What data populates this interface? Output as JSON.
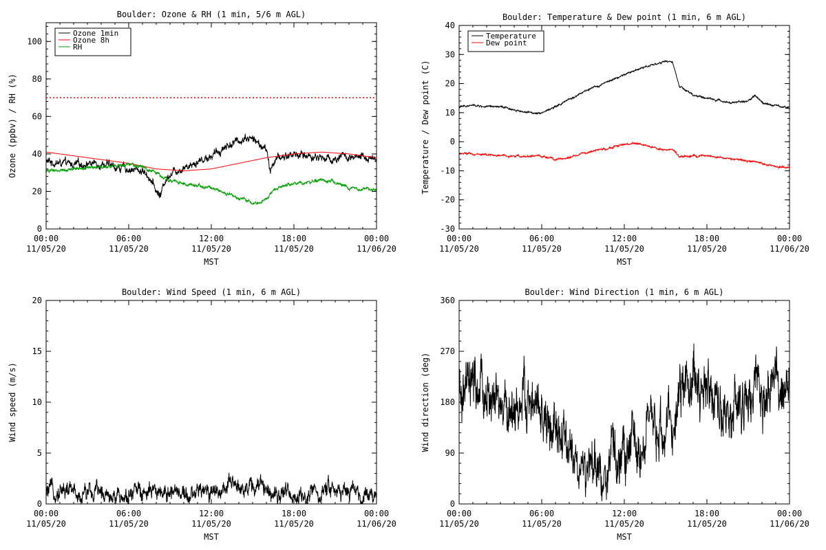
{
  "chart_data": [
    {
      "type": "line",
      "title": "Boulder: Ozone & RH (1 min, 5/6 m AGL)",
      "xlabel": "MST",
      "ylabel": "Ozone (ppbv) / RH (%)",
      "ylim": [
        0,
        110
      ],
      "yticks": [
        0,
        20,
        40,
        60,
        80,
        100
      ],
      "xlim_hours": [
        0,
        24
      ],
      "xticks": [
        {
          "h": 0,
          "time": "00:00",
          "date": "11/05/20"
        },
        {
          "h": 6,
          "time": "06:00",
          "date": "11/05/20"
        },
        {
          "h": 12,
          "time": "12:00",
          "date": "11/05/20"
        },
        {
          "h": 18,
          "time": "18:00",
          "date": "11/05/20"
        },
        {
          "h": 24,
          "time": "00:00",
          "date": "11/06/20"
        }
      ],
      "legend_position": "top-left",
      "reference_lines": [
        {
          "y": 70,
          "color": "#ff0000",
          "style": "dotted"
        }
      ],
      "series": [
        {
          "name": "Ozone 1min",
          "color": "#000000",
          "noise": 2.0,
          "x": [
            0,
            1,
            2,
            3,
            4,
            5,
            6,
            7,
            7.5,
            8,
            8.3,
            8.6,
            9,
            10,
            11,
            12,
            12.5,
            13,
            14,
            14.5,
            15,
            15.5,
            16,
            16.3,
            16.5,
            17,
            18,
            19,
            20,
            21,
            21.5,
            22,
            23,
            24
          ],
          "y": [
            36,
            35,
            34,
            35,
            35,
            33,
            32,
            31,
            28,
            20,
            18,
            25,
            30,
            33,
            36,
            39,
            41,
            44,
            47,
            49,
            48,
            45,
            42,
            30,
            36,
            38,
            40,
            39,
            38,
            37,
            40,
            37,
            38,
            38
          ]
        },
        {
          "name": "Ozone 8h",
          "color": "#ff0000",
          "noise": 0,
          "x": [
            0,
            2,
            4,
            6,
            8,
            10,
            12,
            14,
            16,
            18,
            20,
            22,
            24
          ],
          "y": [
            41,
            39,
            37,
            35,
            32,
            31,
            32,
            35,
            38,
            40,
            41,
            40,
            38
          ]
        },
        {
          "name": "RH",
          "color": "#00a000",
          "noise": 0.8,
          "x": [
            0,
            2,
            4,
            6,
            7,
            8,
            9,
            10,
            11,
            12,
            13,
            14,
            15,
            15.5,
            16,
            16.5,
            17,
            18,
            19,
            20,
            21,
            22,
            23,
            24
          ],
          "y": [
            31,
            32,
            33,
            34,
            33,
            30,
            26,
            24,
            23,
            22,
            19,
            16,
            14,
            14,
            16,
            20,
            23,
            24,
            25,
            26,
            25,
            22,
            21,
            21
          ]
        }
      ]
    },
    {
      "type": "line",
      "title": "Boulder: Temperature & Dew point (1 min, 6 m AGL)",
      "xlabel": "MST",
      "ylabel": "Temperature / Dew point (C)",
      "ylim": [
        -30,
        40
      ],
      "yticks": [
        -30,
        -20,
        -10,
        0,
        10,
        20,
        30,
        40
      ],
      "xlim_hours": [
        0,
        24
      ],
      "xticks": [
        {
          "h": 0,
          "time": "00:00",
          "date": "11/05/20"
        },
        {
          "h": 6,
          "time": "06:00",
          "date": "11/05/20"
        },
        {
          "h": 12,
          "time": "12:00",
          "date": "11/05/20"
        },
        {
          "h": 18,
          "time": "18:00",
          "date": "11/05/20"
        },
        {
          "h": 24,
          "time": "00:00",
          "date": "11/06/20"
        }
      ],
      "legend_position": "top-left",
      "reference_lines": [],
      "series": [
        {
          "name": "Temperature",
          "color": "#000000",
          "noise": 0.3,
          "x": [
            0,
            1,
            2,
            3,
            4,
            5,
            6,
            7,
            8,
            9,
            10,
            11,
            12,
            13,
            14,
            15,
            15.5,
            16,
            17,
            18,
            19,
            20,
            21,
            21.5,
            22,
            23,
            24
          ],
          "y": [
            12,
            12.5,
            12,
            12,
            11,
            10,
            10,
            12,
            14.5,
            17,
            19,
            21,
            23,
            25,
            26.5,
            27.5,
            27.5,
            19,
            16,
            15,
            14,
            13.5,
            14,
            16,
            13.5,
            12.5,
            11.5
          ]
        },
        {
          "name": "Dew point",
          "color": "#ff0000",
          "noise": 0.3,
          "x": [
            0,
            2,
            4,
            6,
            7,
            8,
            9,
            10,
            11,
            12,
            13,
            14,
            15,
            15.5,
            16,
            17,
            18,
            19,
            20,
            21,
            22,
            23,
            24
          ],
          "y": [
            -4,
            -4.5,
            -5,
            -5,
            -6,
            -5.5,
            -4,
            -3,
            -2,
            -1,
            -0.5,
            -2,
            -3,
            -2.5,
            -5,
            -5,
            -5,
            -5.5,
            -6,
            -6.5,
            -7.5,
            -8.5,
            -9
          ]
        }
      ]
    },
    {
      "type": "line",
      "title": "Boulder: Wind Speed (1 min, 6 m AGL)",
      "xlabel": "MST",
      "ylabel": "Wind speed (m/s)",
      "ylim": [
        0,
        20
      ],
      "yticks": [
        0,
        5,
        10,
        15,
        20
      ],
      "xlim_hours": [
        0,
        24
      ],
      "xticks": [
        {
          "h": 0,
          "time": "00:00",
          "date": "11/05/20"
        },
        {
          "h": 6,
          "time": "06:00",
          "date": "11/05/20"
        },
        {
          "h": 12,
          "time": "12:00",
          "date": "11/05/20"
        },
        {
          "h": 18,
          "time": "18:00",
          "date": "11/05/20"
        },
        {
          "h": 24,
          "time": "00:00",
          "date": "11/06/20"
        }
      ],
      "legend_position": "none",
      "reference_lines": [],
      "series": [
        {
          "name": "",
          "color": "#000000",
          "noise": 0.8,
          "min": 0,
          "x": [
            0,
            1,
            2,
            3,
            4,
            5,
            6,
            7,
            8,
            9,
            10,
            11,
            12,
            13,
            14,
            15,
            16,
            17,
            18,
            19,
            20,
            20.8,
            21,
            22,
            23,
            24
          ],
          "y": [
            1,
            1.5,
            1.2,
            0.9,
            1.1,
            1,
            0.9,
            1.2,
            1,
            1.1,
            1.2,
            1,
            1.3,
            1.5,
            1.8,
            1.7,
            1.6,
            1.2,
            0.8,
            0.7,
            0.9,
            2,
            1,
            1.1,
            1,
            1
          ]
        }
      ]
    },
    {
      "type": "line",
      "title": "Boulder: Wind Direction (1 min, 6 m AGL)",
      "xlabel": "MST",
      "ylabel": "Wind direction (deg)",
      "ylim": [
        0,
        360
      ],
      "yticks": [
        0,
        90,
        180,
        270,
        360
      ],
      "xlim_hours": [
        0,
        24
      ],
      "xticks": [
        {
          "h": 0,
          "time": "00:00",
          "date": "11/05/20"
        },
        {
          "h": 6,
          "time": "06:00",
          "date": "11/05/20"
        },
        {
          "h": 12,
          "time": "12:00",
          "date": "11/05/20"
        },
        {
          "h": 18,
          "time": "18:00",
          "date": "11/05/20"
        },
        {
          "h": 24,
          "time": "00:00",
          "date": "11/06/20"
        }
      ],
      "legend_position": "none",
      "reference_lines": [],
      "series": [
        {
          "name": "",
          "color": "#000000",
          "noise": 45,
          "min": 0,
          "max": 360,
          "x": [
            0,
            1,
            2,
            3,
            4,
            5,
            6,
            7,
            8,
            9,
            10,
            11,
            12,
            13,
            14,
            15,
            15.8,
            16,
            17,
            18,
            18.5,
            19,
            20,
            21,
            22,
            23,
            24
          ],
          "y": [
            180,
            200,
            190,
            160,
            170,
            180,
            150,
            120,
            90,
            60,
            50,
            70,
            90,
            110,
            120,
            130,
            140,
            220,
            215,
            210,
            200,
            170,
            160,
            180,
            190,
            200,
            190
          ]
        }
      ]
    }
  ]
}
